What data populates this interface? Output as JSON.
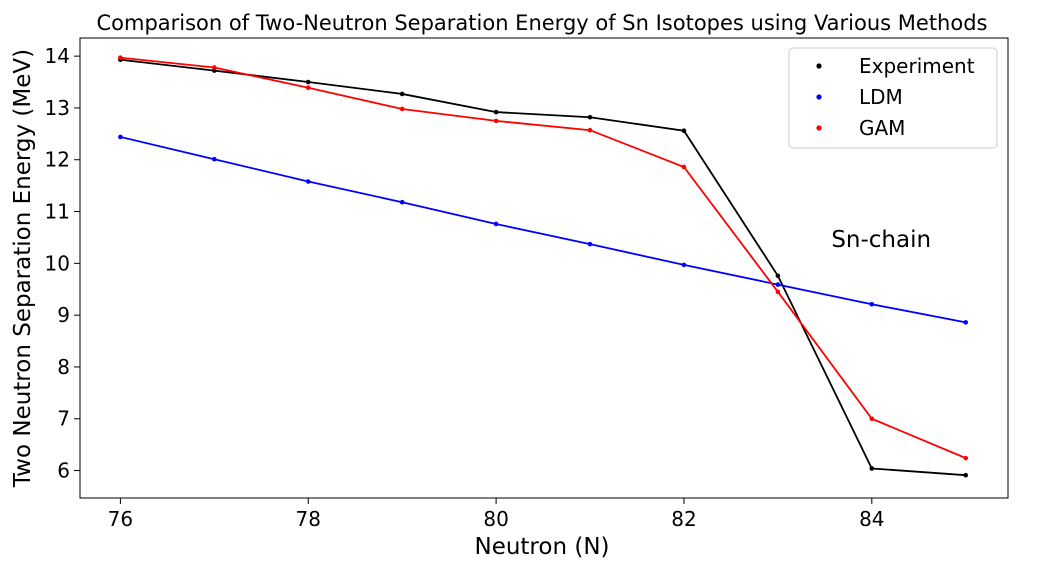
{
  "chart_data": {
    "type": "line",
    "title": "Comparison of Two-Neutron Separation Energy of Sn Isotopes using Various Methods",
    "xlabel": "Neutron (N)",
    "ylabel": "Two Neutron Separation Energy (MeV)",
    "x": [
      76,
      77,
      78,
      79,
      80,
      81,
      82,
      83,
      84,
      85
    ],
    "xlim": [
      75.57,
      85.45
    ],
    "ylim": [
      5.47,
      14.35
    ],
    "xticks": [
      "76",
      "78",
      "80",
      "82",
      "84"
    ],
    "yticks": [
      "6",
      "7",
      "8",
      "9",
      "10",
      "11",
      "12",
      "13",
      "14"
    ],
    "grid": false,
    "legend_position": "top-right",
    "series": [
      {
        "name": "Experiment",
        "color": "#000000",
        "values": [
          13.93,
          13.72,
          13.5,
          13.27,
          12.92,
          12.82,
          12.56,
          9.76,
          6.04,
          5.91
        ]
      },
      {
        "name": "LDM",
        "color": "#0000ff",
        "values": [
          12.44,
          12.01,
          11.58,
          11.18,
          10.76,
          10.37,
          9.97,
          9.59,
          9.21,
          8.86
        ]
      },
      {
        "name": "GAM",
        "color": "#ff0000",
        "values": [
          13.97,
          13.78,
          13.39,
          12.98,
          12.75,
          12.57,
          11.86,
          9.45,
          7.0,
          6.24
        ]
      }
    ],
    "annotations": [
      {
        "text": "Sn-chain",
        "x": 84.1,
        "y": 10.47
      }
    ]
  }
}
